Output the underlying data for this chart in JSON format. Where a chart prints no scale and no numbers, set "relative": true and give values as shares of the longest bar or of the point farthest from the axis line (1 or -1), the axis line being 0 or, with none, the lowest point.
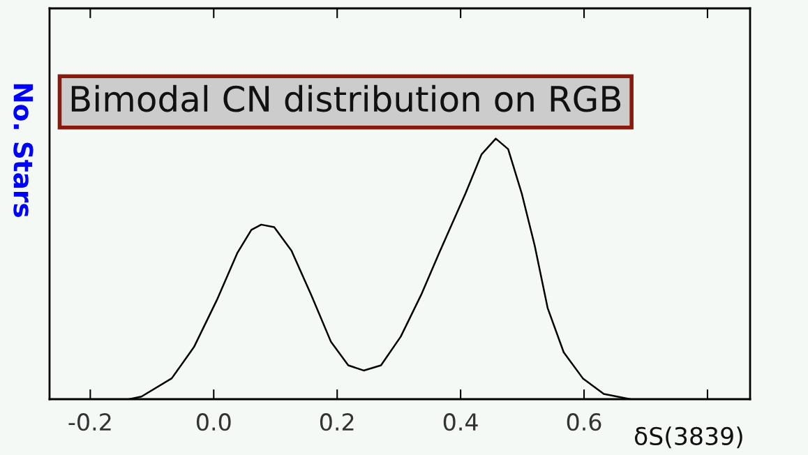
{
  "chart_data": {
    "type": "line",
    "title": "Bimodal CN distribution on RGB",
    "xlabel": "δS(3839)",
    "ylabel": "No. Stars",
    "relative": true,
    "x": [
      -0.137,
      -0.117,
      -0.068,
      -0.032,
      0.005,
      0.038,
      0.061,
      0.077,
      0.098,
      0.126,
      0.158,
      0.19,
      0.218,
      0.243,
      0.271,
      0.303,
      0.336,
      0.365,
      0.408,
      0.434,
      0.457,
      0.477,
      0.499,
      0.52,
      0.541,
      0.567,
      0.598,
      0.632,
      0.675
    ],
    "series": [
      {
        "color": "#000000",
        "values": [
          0.0,
          0.01,
          0.08,
          0.2,
          0.38,
          0.56,
          0.65,
          0.67,
          0.66,
          0.57,
          0.4,
          0.22,
          0.13,
          0.11,
          0.13,
          0.24,
          0.4,
          0.56,
          0.79,
          0.94,
          1.0,
          0.96,
          0.79,
          0.59,
          0.35,
          0.18,
          0.08,
          0.02,
          0.0
        ]
      }
    ],
    "xlim": [
      -0.266,
      0.869
    ],
    "xticks": [
      {
        "value": -0.2,
        "label": "-0.2"
      },
      {
        "value": 0,
        "label": "0.0"
      },
      {
        "value": 0.2,
        "label": "0.2"
      },
      {
        "value": 0.4,
        "label": "0.4"
      },
      {
        "value": 0.6,
        "label": "0.6"
      },
      {
        "value": 0.8,
        "label": null
      }
    ],
    "grid": false,
    "legend": false,
    "line_style": "solid",
    "marker": "none"
  }
}
